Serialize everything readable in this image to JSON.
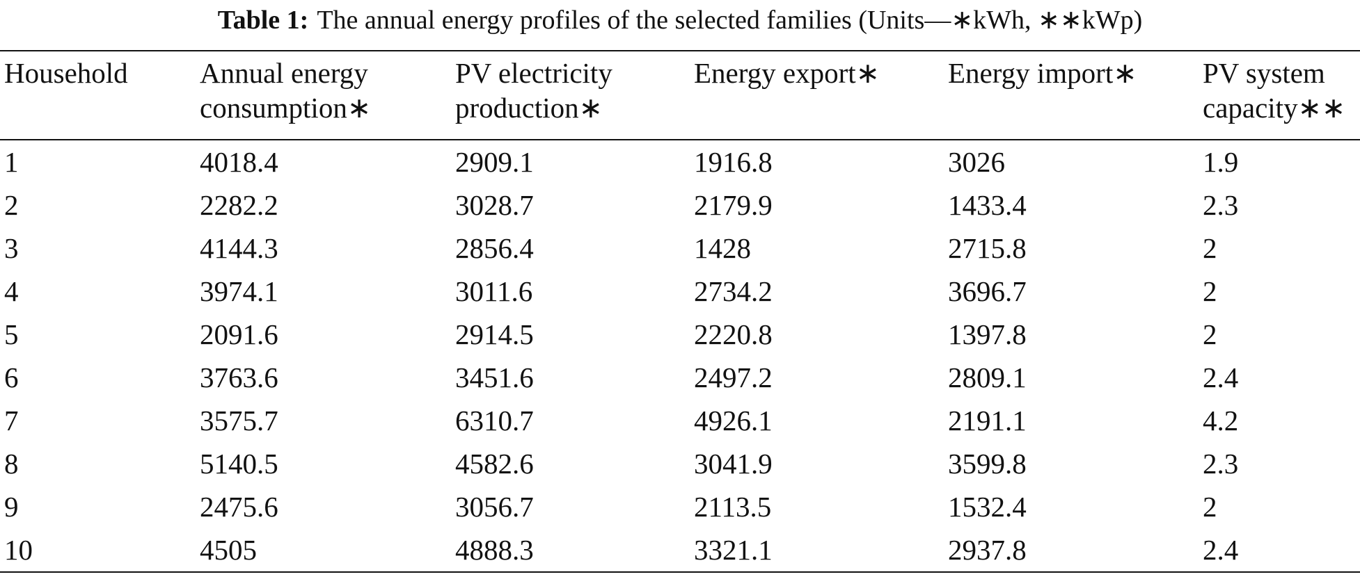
{
  "caption": {
    "label": "Table 1:",
    "text": "The annual energy profiles of the selected families (Units—∗kWh, ∗∗kWp)"
  },
  "table": {
    "header": [
      [
        "Household"
      ],
      [
        "Annual energy",
        "consumption∗"
      ],
      [
        "PV electricity",
        "production∗"
      ],
      [
        "Energy export∗"
      ],
      [
        "Energy import∗"
      ],
      [
        "PV system",
        "capacity∗∗"
      ]
    ],
    "rows": [
      [
        "1",
        "4018.4",
        "2909.1",
        "1916.8",
        "3026",
        "1.9"
      ],
      [
        "2",
        "2282.2",
        "3028.7",
        "2179.9",
        "1433.4",
        "2.3"
      ],
      [
        "3",
        "4144.3",
        "2856.4",
        "1428",
        "2715.8",
        "2"
      ],
      [
        "4",
        "3974.1",
        "3011.6",
        "2734.2",
        "3696.7",
        "2"
      ],
      [
        "5",
        "2091.6",
        "2914.5",
        "2220.8",
        "1397.8",
        "2"
      ],
      [
        "6",
        "3763.6",
        "3451.6",
        "2497.2",
        "2809.1",
        "2.4"
      ],
      [
        "7",
        "3575.7",
        "6310.7",
        "4926.1",
        "2191.1",
        "4.2"
      ],
      [
        "8",
        "5140.5",
        "4582.6",
        "3041.9",
        "3599.8",
        "2.3"
      ],
      [
        "9",
        "2475.6",
        "3056.7",
        "2113.5",
        "1532.4",
        "2"
      ],
      [
        "10",
        "4505",
        "4888.3",
        "3321.1",
        "2937.8",
        "2.4"
      ]
    ]
  }
}
